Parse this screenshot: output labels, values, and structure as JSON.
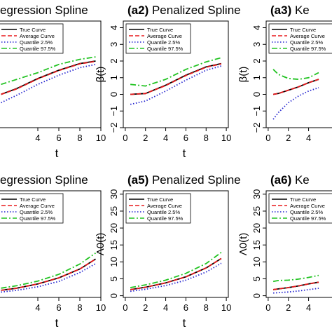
{
  "figure": {
    "title_prefix": ""
  },
  "chart_data": [
    {
      "id": "a1",
      "row": 0,
      "col": 0,
      "panel_label": "",
      "title": "egression Spline",
      "type": "line",
      "xlabel": "t",
      "ylabel": "",
      "xlim": [
        0,
        10
      ],
      "ylim": [
        -2,
        4.4
      ],
      "xticks": [
        4,
        6,
        8,
        10
      ],
      "yticks": [],
      "legend": [
        "True Curve",
        "Average Curve",
        "Quantile 2.5%",
        "Quantile 97.5%"
      ],
      "legend_visible": [
        "rve",
        "e Curve",
        "e 2.5%",
        "e 97.5%"
      ],
      "x": [
        0.5,
        2,
        4,
        6,
        8,
        9.5
      ],
      "series": [
        {
          "name": "True Curve",
          "values": [
            0.0,
            0.35,
            0.95,
            1.45,
            1.85,
            2.0
          ],
          "color": "#000000",
          "dash": "solid"
        },
        {
          "name": "Average Curve",
          "values": [
            0.0,
            0.33,
            0.93,
            1.43,
            1.83,
            1.98
          ],
          "color": "#e8191c",
          "dash": "dash"
        },
        {
          "name": "Quantile 2.5%",
          "values": [
            -0.5,
            -0.05,
            0.6,
            1.15,
            1.6,
            1.8
          ],
          "color": "#2626d0",
          "dash": "dot"
        },
        {
          "name": "Quantile 97.5%",
          "values": [
            0.6,
            0.9,
            1.3,
            1.8,
            2.1,
            2.25
          ],
          "color": "#22c322",
          "dash": "dashdot"
        }
      ]
    },
    {
      "id": "a2",
      "row": 0,
      "col": 1,
      "panel_label": "(a2)",
      "title": "Penalized Spline",
      "type": "line",
      "xlabel": "t",
      "ylabel": "β(t)",
      "xlim": [
        -0.2,
        10.2
      ],
      "ylim": [
        -2,
        4.4
      ],
      "xticks": [
        0,
        2,
        4,
        6,
        8,
        10
      ],
      "yticks": [
        -2,
        -1,
        0,
        1,
        2,
        3,
        4
      ],
      "legend": [
        "True Curve",
        "Average Curve",
        "Quantile 2.5%",
        "Quantile 97.5%"
      ],
      "legend_visible": [
        "True Curve",
        "Average Curve",
        "Quantile 2.5%",
        "Quantile 97.5%"
      ],
      "x": [
        0.5,
        2,
        4,
        6,
        8,
        9.5
      ],
      "series": [
        {
          "name": "True Curve",
          "values": [
            0.0,
            0.05,
            0.55,
            1.15,
            1.65,
            1.85
          ],
          "color": "#000000",
          "dash": "solid"
        },
        {
          "name": "Average Curve",
          "values": [
            0.0,
            0.05,
            0.53,
            1.13,
            1.63,
            1.83
          ],
          "color": "#e8191c",
          "dash": "dash"
        },
        {
          "name": "Quantile 2.5%",
          "values": [
            -0.6,
            -0.4,
            0.2,
            0.85,
            1.45,
            1.7
          ],
          "color": "#2626d0",
          "dash": "dot"
        },
        {
          "name": "Quantile 97.5%",
          "values": [
            0.6,
            0.5,
            0.9,
            1.5,
            1.95,
            2.2
          ],
          "color": "#22c322",
          "dash": "dashdot"
        }
      ]
    },
    {
      "id": "a3",
      "row": 0,
      "col": 2,
      "panel_label": "(a3)",
      "title": "Ke",
      "type": "line",
      "xlabel": "",
      "ylabel": "β(t)",
      "xlim": [
        -0.2,
        10.2
      ],
      "ylim": [
        -2,
        4.4
      ],
      "xticks": [
        0,
        2,
        4
      ],
      "yticks": [
        -2,
        -1,
        0,
        1,
        2,
        3,
        4
      ],
      "legend": [
        "True Curve",
        "Average Curve",
        "Quantile 2.5%",
        "Quantile 97.5%"
      ],
      "legend_visible": [
        "True Curve",
        "Average Curve",
        "Quantile 2.5%",
        "Quantile 97.5%"
      ],
      "x": [
        0.5,
        1,
        2,
        3,
        4,
        5
      ],
      "series": [
        {
          "name": "True Curve",
          "values": [
            0.0,
            0.05,
            0.25,
            0.45,
            0.7,
            0.9
          ],
          "color": "#000000",
          "dash": "solid"
        },
        {
          "name": "Average Curve",
          "values": [
            0.0,
            0.05,
            0.25,
            0.45,
            0.7,
            0.9
          ],
          "color": "#e8191c",
          "dash": "dash"
        },
        {
          "name": "Quantile 2.5%",
          "values": [
            -1.5,
            -1.1,
            -0.5,
            -0.1,
            0.2,
            0.4
          ],
          "color": "#2626d0",
          "dash": "dot"
        },
        {
          "name": "Quantile 97.5%",
          "values": [
            1.5,
            1.2,
            0.95,
            0.9,
            1.0,
            1.3
          ],
          "color": "#22c322",
          "dash": "dashdot"
        }
      ]
    },
    {
      "id": "a4",
      "row": 1,
      "col": 0,
      "panel_label": "",
      "title": "egression Spline",
      "type": "line",
      "xlabel": "t",
      "ylabel": "",
      "xlim": [
        0,
        10
      ],
      "ylim": [
        0,
        30
      ],
      "xticks": [
        4,
        6,
        8,
        10
      ],
      "yticks": [],
      "legend": [
        "True Curve",
        "Average Curve",
        "Quantile 2.5%",
        "Quantile 97.5%"
      ],
      "legend_visible": [
        "",
        "rve",
        "%",
        "%"
      ],
      "x": [
        0.5,
        2,
        4,
        6,
        8,
        9.5
      ],
      "series": [
        {
          "name": "True Curve",
          "values": [
            2.0,
            2.6,
            3.8,
            5.5,
            8.0,
            10.8
          ],
          "color": "#000000",
          "dash": "solid"
        },
        {
          "name": "Average Curve",
          "values": [
            2.0,
            2.6,
            3.8,
            5.5,
            8.0,
            10.8
          ],
          "color": "#e8191c",
          "dash": "dash"
        },
        {
          "name": "Quantile 2.5%",
          "values": [
            1.5,
            2.0,
            3.0,
            4.5,
            7.0,
            9.5
          ],
          "color": "#2626d0",
          "dash": "dot"
        },
        {
          "name": "Quantile 97.5%",
          "values": [
            2.6,
            3.3,
            4.6,
            6.5,
            9.4,
            12.5
          ],
          "color": "#22c322",
          "dash": "dashdot"
        }
      ]
    },
    {
      "id": "a5",
      "row": 1,
      "col": 1,
      "panel_label": "(a5)",
      "title": "Penalized Spline",
      "type": "line",
      "xlabel": "t",
      "ylabel": "Λ0(t)",
      "xlim": [
        -0.2,
        10.2
      ],
      "ylim": [
        -0.5,
        31
      ],
      "xticks": [
        0,
        2,
        4,
        6,
        8,
        10
      ],
      "yticks": [
        0,
        5,
        10,
        15,
        20,
        25,
        30
      ],
      "legend": [
        "True Curve",
        "Average Curve",
        "Quantile 2.5%",
        "Quantile 97.5%"
      ],
      "legend_visible": [
        "True Curve",
        "Average Curve",
        "Quantile 2.5%",
        "Quantile 97.5%"
      ],
      "x": [
        0.5,
        2,
        4,
        6,
        8,
        9.5
      ],
      "series": [
        {
          "name": "True Curve",
          "values": [
            1.8,
            2.5,
            3.8,
            5.6,
            8.2,
            11.0
          ],
          "color": "#000000",
          "dash": "solid"
        },
        {
          "name": "Average Curve",
          "values": [
            1.8,
            2.5,
            3.8,
            5.6,
            8.2,
            11.0
          ],
          "color": "#e8191c",
          "dash": "dash"
        },
        {
          "name": "Quantile 2.5%",
          "values": [
            1.3,
            1.9,
            3.0,
            4.6,
            7.0,
            9.6
          ],
          "color": "#2626d0",
          "dash": "dot"
        },
        {
          "name": "Quantile 97.5%",
          "values": [
            2.4,
            3.2,
            4.6,
            6.6,
            9.5,
            12.8
          ],
          "color": "#22c322",
          "dash": "dashdot"
        }
      ]
    },
    {
      "id": "a6",
      "row": 1,
      "col": 2,
      "panel_label": "(a6)",
      "title": "Ke",
      "type": "line",
      "xlabel": "",
      "ylabel": "Λ0(t)",
      "xlim": [
        -0.2,
        10.2
      ],
      "ylim": [
        -0.5,
        31
      ],
      "xticks": [
        0,
        2,
        4
      ],
      "yticks": [
        0,
        5,
        10,
        15,
        20,
        25,
        30
      ],
      "legend": [
        "True Curve",
        "Average Curve",
        "Quantile 2.5%",
        "Quantile 97.5%"
      ],
      "legend_visible": [
        "True Curve",
        "Average Curve",
        "Quantile 2.5%",
        "Quantile 97.5%"
      ],
      "x": [
        0.5,
        1,
        2,
        3,
        4,
        5
      ],
      "series": [
        {
          "name": "True Curve",
          "values": [
            1.8,
            2.0,
            2.4,
            2.9,
            3.5,
            4.0
          ],
          "color": "#000000",
          "dash": "solid"
        },
        {
          "name": "Average Curve",
          "values": [
            1.8,
            2.0,
            2.4,
            2.9,
            3.5,
            4.0
          ],
          "color": "#e8191c",
          "dash": "dash"
        },
        {
          "name": "Quantile 2.5%",
          "values": [
            0.8,
            0.9,
            1.1,
            1.4,
            1.8,
            2.2
          ],
          "color": "#2626d0",
          "dash": "dot"
        },
        {
          "name": "Quantile 97.5%",
          "values": [
            4.2,
            4.5,
            4.6,
            4.9,
            5.4,
            6.0
          ],
          "color": "#22c322",
          "dash": "dashdot"
        }
      ]
    }
  ]
}
